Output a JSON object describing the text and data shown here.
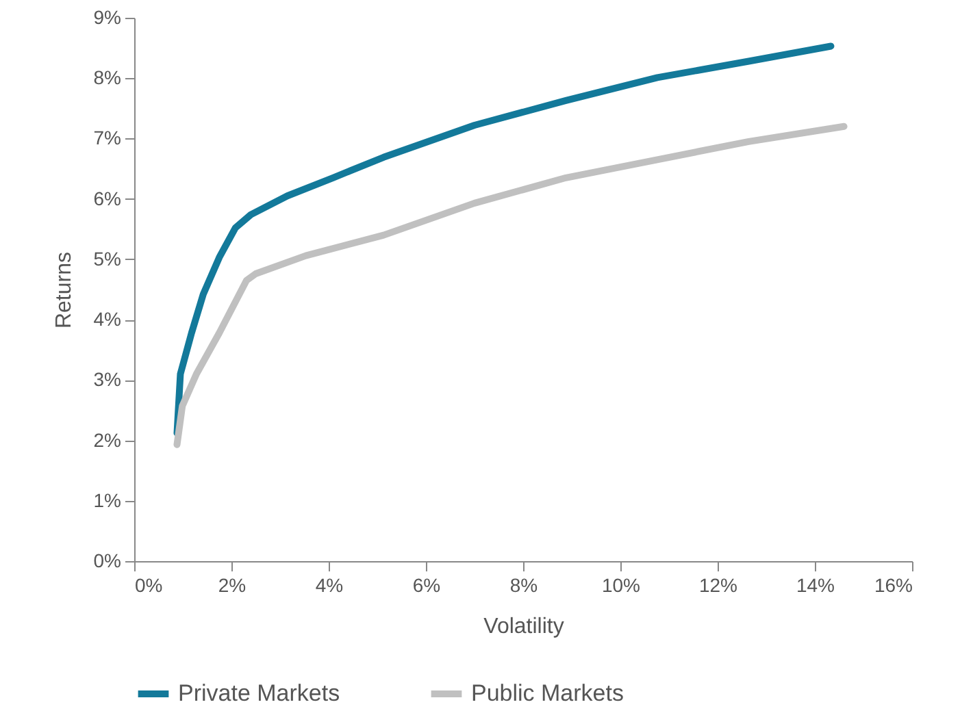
{
  "chart_data": {
    "type": "line",
    "xlabel": "Volatility",
    "ylabel": "Returns",
    "xlim": [
      0,
      16
    ],
    "ylim": [
      0,
      9
    ],
    "xticks": [
      {
        "value": 0,
        "label": "0%"
      },
      {
        "value": 2,
        "label": "2%"
      },
      {
        "value": 4,
        "label": "4%"
      },
      {
        "value": 6,
        "label": "6%"
      },
      {
        "value": 8,
        "label": "8%"
      },
      {
        "value": 10,
        "label": "10%"
      },
      {
        "value": 12,
        "label": "12%"
      },
      {
        "value": 14,
        "label": "14%"
      },
      {
        "value": 16,
        "label": "16%"
      }
    ],
    "yticks": [
      {
        "value": 0,
        "label": "0%"
      },
      {
        "value": 1,
        "label": "1%"
      },
      {
        "value": 2,
        "label": "2%"
      },
      {
        "value": 3,
        "label": "3%"
      },
      {
        "value": 4,
        "label": "4%"
      },
      {
        "value": 5,
        "label": "5%"
      },
      {
        "value": 6,
        "label": "6%"
      },
      {
        "value": 7,
        "label": "7%"
      },
      {
        "value": 8,
        "label": "8%"
      },
      {
        "value": 9,
        "label": "9%"
      }
    ],
    "grid": false,
    "legend": "bottom",
    "marker": "none",
    "line_style": "solid",
    "series": [
      {
        "name": "Private Markets",
        "color": "#13799a",
        "x": [
          0.88,
          0.95,
          1.18,
          1.42,
          1.75,
          2.08,
          2.4,
          3.15,
          4.09,
          5.13,
          7.0,
          8.88,
          10.76,
          12.64,
          14.33
        ],
        "values": [
          2.12,
          3.1,
          3.78,
          4.42,
          5.03,
          5.52,
          5.74,
          6.05,
          6.35,
          6.69,
          7.22,
          7.63,
          8.01,
          8.28,
          8.53
        ]
      },
      {
        "name": "Public Markets",
        "color": "#c0c0c0",
        "x": [
          0.88,
          0.99,
          1.28,
          1.75,
          2.31,
          2.5,
          3.53,
          5.13,
          7.0,
          8.88,
          10.76,
          12.64,
          14.6
        ],
        "values": [
          1.93,
          2.57,
          3.1,
          3.78,
          4.65,
          4.76,
          5.06,
          5.4,
          5.93,
          6.35,
          6.65,
          6.95,
          7.2
        ]
      }
    ]
  }
}
